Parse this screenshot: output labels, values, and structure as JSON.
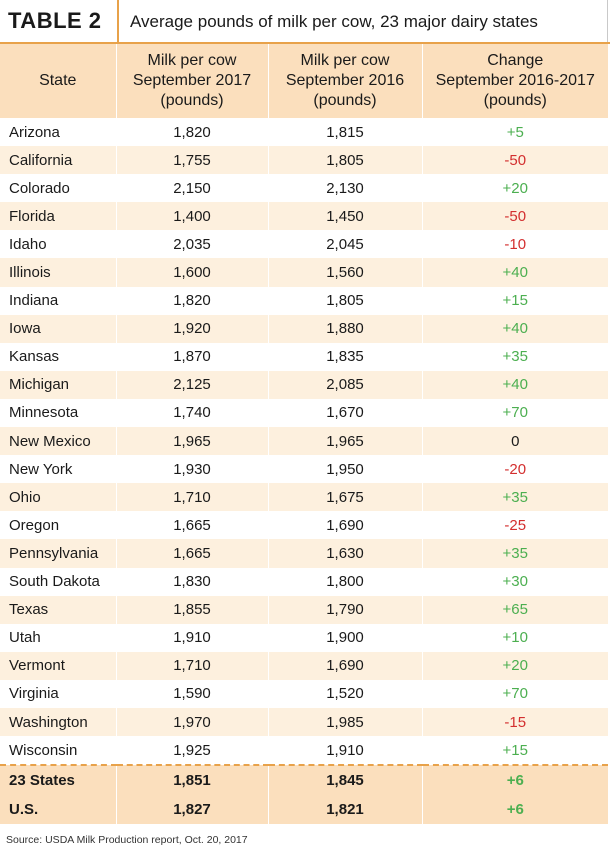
{
  "header": {
    "table_label": "TABLE 2",
    "title": "Average pounds of milk per cow, 23 major dairy states"
  },
  "columns": [
    "State",
    "Milk per cow\nSeptember 2017\n(pounds)",
    "Milk per cow\nSeptember 2016\n(pounds)",
    "Change\nSeptember 2016-2017\n(pounds)"
  ],
  "rows": [
    {
      "state": "Arizona",
      "sep2017": "1,820",
      "sep2016": "1,815",
      "change": "+5"
    },
    {
      "state": "California",
      "sep2017": "1,755",
      "sep2016": "1,805",
      "change": "-50"
    },
    {
      "state": "Colorado",
      "sep2017": "2,150",
      "sep2016": "2,130",
      "change": "+20"
    },
    {
      "state": "Florida",
      "sep2017": "1,400",
      "sep2016": "1,450",
      "change": "-50"
    },
    {
      "state": "Idaho",
      "sep2017": "2,035",
      "sep2016": "2,045",
      "change": "-10"
    },
    {
      "state": "Illinois",
      "sep2017": "1,600",
      "sep2016": "1,560",
      "change": "+40"
    },
    {
      "state": "Indiana",
      "sep2017": "1,820",
      "sep2016": "1,805",
      "change": "+15"
    },
    {
      "state": "Iowa",
      "sep2017": "1,920",
      "sep2016": "1,880",
      "change": "+40"
    },
    {
      "state": "Kansas",
      "sep2017": "1,870",
      "sep2016": "1,835",
      "change": "+35"
    },
    {
      "state": "Michigan",
      "sep2017": "2,125",
      "sep2016": "2,085",
      "change": "+40"
    },
    {
      "state": "Minnesota",
      "sep2017": "1,740",
      "sep2016": "1,670",
      "change": "+70"
    },
    {
      "state": "New Mexico",
      "sep2017": "1,965",
      "sep2016": "1,965",
      "change": "0"
    },
    {
      "state": "New York",
      "sep2017": "1,930",
      "sep2016": "1,950",
      "change": "-20"
    },
    {
      "state": "Ohio",
      "sep2017": "1,710",
      "sep2016": "1,675",
      "change": "+35"
    },
    {
      "state": "Oregon",
      "sep2017": "1,665",
      "sep2016": "1,690",
      "change": "-25"
    },
    {
      "state": "Pennsylvania",
      "sep2017": "1,665",
      "sep2016": "1,630",
      "change": "+35"
    },
    {
      "state": "South Dakota",
      "sep2017": "1,830",
      "sep2016": "1,800",
      "change": "+30"
    },
    {
      "state": "Texas",
      "sep2017": "1,855",
      "sep2016": "1,790",
      "change": "+65"
    },
    {
      "state": "Utah",
      "sep2017": "1,910",
      "sep2016": "1,900",
      "change": "+10"
    },
    {
      "state": "Vermont",
      "sep2017": "1,710",
      "sep2016": "1,690",
      "change": "+20"
    },
    {
      "state": "Virginia",
      "sep2017": "1,590",
      "sep2016": "1,520",
      "change": "+70"
    },
    {
      "state": "Washington",
      "sep2017": "1,970",
      "sep2016": "1,985",
      "change": "-15"
    },
    {
      "state": "Wisconsin",
      "sep2017": "1,925",
      "sep2016": "1,910",
      "change": "+15"
    }
  ],
  "totals": [
    {
      "state": "23 States",
      "sep2017": "1,851",
      "sep2016": "1,845",
      "change": "+6"
    },
    {
      "state": "U.S.",
      "sep2017": "1,827",
      "sep2016": "1,821",
      "change": "+6"
    }
  ],
  "source": "Source: USDA Milk Production report, Oct. 20, 2017",
  "colors": {
    "accent": "#e8a24a",
    "header_fill": "#fbdfbd",
    "stripe_fill": "#fdf0de",
    "positive": "#4caf50",
    "negative": "#d32f2f"
  }
}
